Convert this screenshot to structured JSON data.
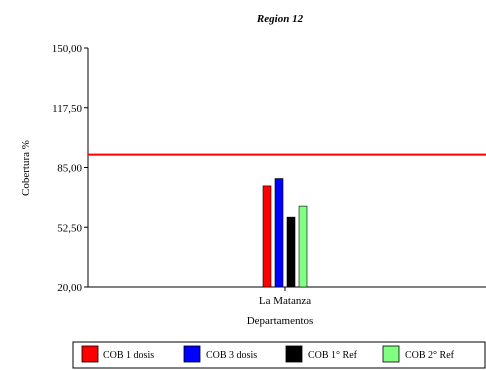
{
  "chart_data": {
    "type": "bar",
    "title": "Region 12",
    "xlabel": "Departamentos",
    "ylabel": "Cobertura %",
    "categories": [
      "La Matanza"
    ],
    "ylim": [
      20,
      150
    ],
    "yticks": [
      "20,00",
      "52,50",
      "85,00",
      "117,50",
      "150,00"
    ],
    "ytick_values": [
      20,
      52.5,
      85,
      117.5,
      150
    ],
    "reference_line": {
      "value": 92,
      "color": "#ff0000"
    },
    "grid": false,
    "legend_position": "bottom",
    "series": [
      {
        "name": "COB 1 dosis",
        "color": "#ff0000",
        "values": [
          75
        ]
      },
      {
        "name": "COB 3 dosis",
        "color": "#0000ff",
        "values": [
          79
        ]
      },
      {
        "name": "COB 1° Ref",
        "color": "#000000",
        "values": [
          58
        ]
      },
      {
        "name": "COB 2° Ref",
        "color": "#80ff80",
        "values": [
          64
        ]
      }
    ]
  }
}
